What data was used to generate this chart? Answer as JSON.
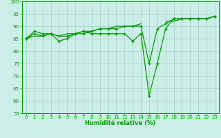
{
  "x": [
    0,
    1,
    2,
    3,
    4,
    5,
    6,
    7,
    8,
    9,
    10,
    11,
    12,
    13,
    14,
    15,
    16,
    17,
    18,
    19,
    20,
    21,
    22,
    23
  ],
  "line1": [
    85,
    88,
    87,
    87,
    84,
    85,
    87,
    88,
    87,
    87,
    87,
    87,
    87,
    84,
    87,
    62,
    75,
    89,
    93,
    93,
    93,
    93,
    93,
    94
  ],
  "line2": [
    85,
    87,
    86,
    87,
    86,
    86,
    87,
    87,
    88,
    89,
    89,
    89,
    90,
    90,
    90,
    75,
    89,
    91,
    93,
    93,
    93,
    93,
    93,
    94
  ],
  "line3": [
    85,
    86,
    86,
    87,
    86,
    87,
    87,
    88,
    88,
    89,
    89,
    90,
    90,
    90,
    91,
    null,
    null,
    92,
    92,
    93,
    93,
    93,
    93,
    94
  ],
  "xlabel": "Humidité relative (%)",
  "bg_color": "#cceee8",
  "grid_color": "#aad4cc",
  "line_color": "#009900",
  "ylim": [
    55,
    100
  ],
  "yticks": [
    55,
    60,
    65,
    70,
    75,
    80,
    85,
    90,
    95,
    100
  ],
  "xticks": [
    0,
    1,
    2,
    3,
    4,
    5,
    6,
    7,
    8,
    9,
    10,
    11,
    12,
    13,
    14,
    15,
    16,
    17,
    18,
    19,
    20,
    21,
    22,
    23
  ]
}
